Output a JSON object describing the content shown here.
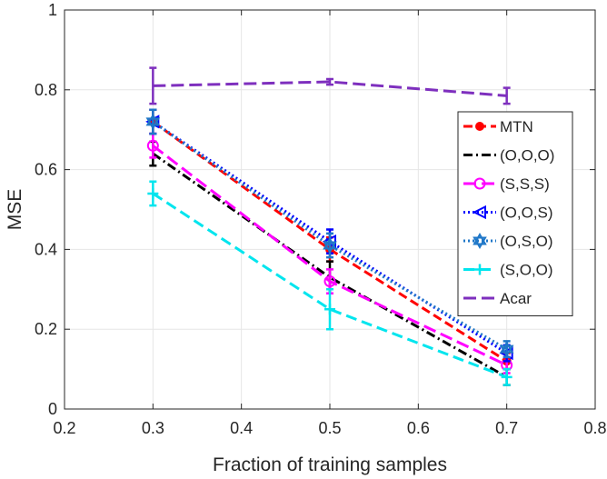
{
  "chart_data": {
    "type": "line",
    "xlabel": "Fraction of training samples",
    "ylabel": "MSE",
    "xlim": [
      0.2,
      0.8
    ],
    "ylim": [
      0,
      1
    ],
    "xticks": [
      0.2,
      0.3,
      0.4,
      0.5,
      0.6,
      0.7,
      0.8
    ],
    "yticks": [
      0,
      0.2,
      0.4,
      0.6,
      0.8,
      1
    ],
    "xtick_labels": [
      "0.2",
      "0.3",
      "0.4",
      "0.5",
      "0.6",
      "0.7",
      "0.8"
    ],
    "ytick_labels": [
      "0",
      "0.2",
      "0.4",
      "0.6",
      "0.8",
      "1"
    ],
    "grid": true,
    "legend_position": "right",
    "x": [
      0.3,
      0.5,
      0.7
    ],
    "series": [
      {
        "name": "MTN",
        "values": [
          0.72,
          0.4,
          0.12
        ],
        "errors": [
          0.03,
          0.03,
          0.02
        ],
        "color": "#ff0000",
        "dash": "10,5",
        "marker": "dot"
      },
      {
        "name": "(O,O,O)",
        "values": [
          0.64,
          0.33,
          0.08
        ],
        "errors": [
          0.03,
          0.04,
          0.02
        ],
        "color": "#000000",
        "dash": "10,4,2,4",
        "marker": "none"
      },
      {
        "name": "(S,S,S)",
        "values": [
          0.66,
          0.32,
          0.11
        ],
        "errors": [
          0.03,
          0.03,
          0.02
        ],
        "color": "#ff00ff",
        "dash": "14,6",
        "marker": "circle"
      },
      {
        "name": "(O,O,S)",
        "values": [
          0.72,
          0.42,
          0.14
        ],
        "errors": [
          0.03,
          0.03,
          0.02
        ],
        "color": "#0000ff",
        "dash": "2,3",
        "marker": "triangle-left"
      },
      {
        "name": "(O,S,O)",
        "values": [
          0.72,
          0.41,
          0.15
        ],
        "errors": [
          0.03,
          0.03,
          0.02
        ],
        "color": "#1f77c8",
        "dash": "2,3",
        "marker": "hexagram"
      },
      {
        "name": "(S,O,O)",
        "values": [
          0.54,
          0.25,
          0.08
        ],
        "errors": [
          0.03,
          0.05,
          0.02
        ],
        "color": "#00e5ee",
        "dash": "12,6",
        "marker": "plus"
      },
      {
        "name": "Acar",
        "values": [
          0.81,
          0.82,
          0.785
        ],
        "errors": [
          0.045,
          0.007,
          0.02
        ],
        "color": "#7e2fbe",
        "dash": "14,6",
        "marker": "none"
      }
    ]
  }
}
